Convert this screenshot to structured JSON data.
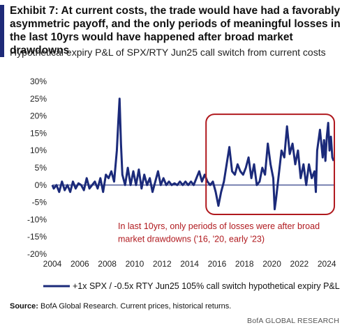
{
  "header": {
    "title": "Exhibit 7: At current costs, the trade would have had a favorably asymmetric payoff, and the only periods of meaningful losses in the last 10yrs would have happened after broad market drawdowns",
    "subtitle": "Hypothetical expiry P&L of SPX/RTY Jun25 call switch from current costs"
  },
  "footer": {
    "source_label": "Source:",
    "source_text": "BofA Global Research. Current prices, historical returns.",
    "brand": "BofA GLOBAL RESEARCH"
  },
  "colors": {
    "series": "#1b2a7a",
    "highlight": "#b0191e",
    "accent": "#1e2a78"
  },
  "chart_data": {
    "type": "line",
    "title": "Hypothetical expiry P&L of SPX/RTY Jun25 call switch from current costs",
    "xlim": [
      2004,
      2024.6
    ],
    "ylim": [
      -0.2,
      0.3
    ],
    "x_ticks": [
      2004,
      2006,
      2008,
      2010,
      2012,
      2014,
      2016,
      2018,
      2020,
      2022,
      2024
    ],
    "x_tick_labels": [
      "2004",
      "2006",
      "2008",
      "2010",
      "2012",
      "2014",
      "2016",
      "2018",
      "2020",
      "2022",
      "2024"
    ],
    "y_ticks": [
      -0.2,
      -0.15,
      -0.1,
      -0.05,
      0.0,
      0.05,
      0.1,
      0.15,
      0.2,
      0.25,
      0.3
    ],
    "y_tick_labels": [
      "-20%",
      "-15%",
      "-10%",
      "-5%",
      "0%",
      "5%",
      "10%",
      "15%",
      "20%",
      "25%",
      "30%"
    ],
    "grid": false,
    "legend_position": "bottom",
    "series": [
      {
        "name": "+1x SPX / -0.5x RTY Jun25 105% call switch hypothetical expiry P&L",
        "points": [
          [
            2004.0,
            0.0
          ],
          [
            2004.1,
            -0.01
          ],
          [
            2004.3,
            0.0
          ],
          [
            2004.5,
            -0.02
          ],
          [
            2004.7,
            0.01
          ],
          [
            2004.9,
            -0.015
          ],
          [
            2005.1,
            0.0
          ],
          [
            2005.3,
            -0.02
          ],
          [
            2005.5,
            0.01
          ],
          [
            2005.7,
            -0.01
          ],
          [
            2005.9,
            0.005
          ],
          [
            2006.1,
            0.0
          ],
          [
            2006.3,
            -0.015
          ],
          [
            2006.5,
            0.02
          ],
          [
            2006.7,
            -0.01
          ],
          [
            2006.9,
            0.0
          ],
          [
            2007.1,
            0.01
          ],
          [
            2007.3,
            -0.01
          ],
          [
            2007.5,
            0.02
          ],
          [
            2007.7,
            -0.02
          ],
          [
            2007.9,
            0.03
          ],
          [
            2008.1,
            0.02
          ],
          [
            2008.3,
            0.04
          ],
          [
            2008.5,
            0.01
          ],
          [
            2008.7,
            0.1
          ],
          [
            2008.8,
            0.18
          ],
          [
            2008.9,
            0.25
          ],
          [
            2009.0,
            0.12
          ],
          [
            2009.1,
            0.03
          ],
          [
            2009.3,
            0.0
          ],
          [
            2009.5,
            0.05
          ],
          [
            2009.7,
            0.0
          ],
          [
            2009.9,
            0.04
          ],
          [
            2010.1,
            0.0
          ],
          [
            2010.3,
            0.045
          ],
          [
            2010.5,
            -0.01
          ],
          [
            2010.7,
            0.03
          ],
          [
            2010.9,
            0.0
          ],
          [
            2011.1,
            0.02
          ],
          [
            2011.3,
            -0.02
          ],
          [
            2011.5,
            0.01
          ],
          [
            2011.7,
            0.04
          ],
          [
            2011.9,
            0.0
          ],
          [
            2012.1,
            0.02
          ],
          [
            2012.3,
            0.0
          ],
          [
            2012.5,
            0.01
          ],
          [
            2012.7,
            0.0
          ],
          [
            2012.9,
            0.005
          ],
          [
            2013.1,
            0.0
          ],
          [
            2013.3,
            0.01
          ],
          [
            2013.5,
            0.0
          ],
          [
            2013.7,
            0.01
          ],
          [
            2013.9,
            0.0
          ],
          [
            2014.1,
            0.01
          ],
          [
            2014.3,
            0.0
          ],
          [
            2014.5,
            0.02
          ],
          [
            2014.7,
            0.04
          ],
          [
            2014.9,
            0.01
          ],
          [
            2015.1,
            0.03
          ],
          [
            2015.3,
            0.01
          ],
          [
            2015.5,
            0.0
          ],
          [
            2015.7,
            0.01
          ],
          [
            2015.9,
            -0.02
          ],
          [
            2016.1,
            -0.06
          ],
          [
            2016.3,
            -0.02
          ],
          [
            2016.5,
            0.01
          ],
          [
            2016.7,
            0.06
          ],
          [
            2016.9,
            0.11
          ],
          [
            2017.1,
            0.04
          ],
          [
            2017.3,
            0.03
          ],
          [
            2017.5,
            0.06
          ],
          [
            2017.7,
            0.04
          ],
          [
            2017.9,
            0.03
          ],
          [
            2018.1,
            0.05
          ],
          [
            2018.3,
            0.08
          ],
          [
            2018.5,
            0.02
          ],
          [
            2018.7,
            0.06
          ],
          [
            2018.9,
            0.0
          ],
          [
            2019.1,
            0.01
          ],
          [
            2019.3,
            0.05
          ],
          [
            2019.5,
            0.03
          ],
          [
            2019.7,
            0.12
          ],
          [
            2019.9,
            0.06
          ],
          [
            2020.1,
            0.02
          ],
          [
            2020.2,
            -0.07
          ],
          [
            2020.3,
            -0.04
          ],
          [
            2020.5,
            0.03
          ],
          [
            2020.7,
            0.1
          ],
          [
            2020.9,
            0.08
          ],
          [
            2021.1,
            0.17
          ],
          [
            2021.3,
            0.09
          ],
          [
            2021.5,
            0.12
          ],
          [
            2021.7,
            0.06
          ],
          [
            2021.9,
            0.1
          ],
          [
            2022.1,
            0.02
          ],
          [
            2022.3,
            0.06
          ],
          [
            2022.5,
            0.0
          ],
          [
            2022.7,
            0.06
          ],
          [
            2022.9,
            0.02
          ],
          [
            2023.1,
            0.04
          ],
          [
            2023.2,
            -0.02
          ],
          [
            2023.3,
            0.1
          ],
          [
            2023.5,
            0.16
          ],
          [
            2023.7,
            0.08
          ],
          [
            2023.8,
            0.13
          ],
          [
            2023.9,
            0.07
          ],
          [
            2024.0,
            0.14
          ],
          [
            2024.1,
            0.18
          ],
          [
            2024.2,
            0.1
          ],
          [
            2024.3,
            0.14
          ],
          [
            2024.4,
            0.08
          ],
          [
            2024.5,
            0.07
          ]
        ]
      }
    ],
    "annotation": {
      "text_line1": "In last 10yrs, only periods of losses were after broad",
      "text_line2": "market drawdowns ('16, '20, early '23)",
      "box_x_range": [
        2015.2,
        2024.55
      ],
      "box_y_range": [
        -0.085,
        0.205
      ]
    }
  }
}
